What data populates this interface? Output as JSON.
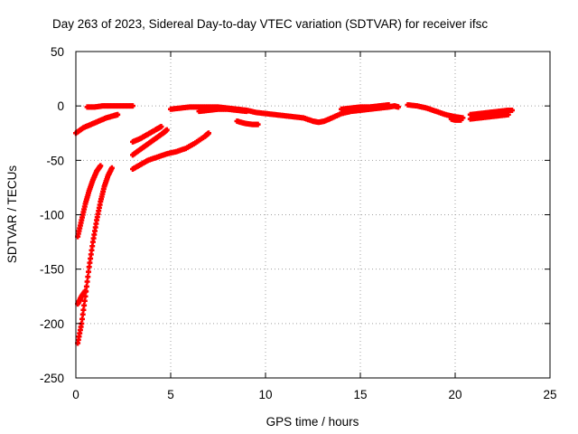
{
  "chart_data": {
    "type": "scatter",
    "title": "Day 263 of 2023, Sidereal Day-to-day VTEC variation (SDTVAR) for receiver ifsc",
    "xlabel": "GPS time / hours",
    "ylabel": "SDTVAR / TECUs",
    "xlim": [
      0,
      25
    ],
    "ylim": [
      -250,
      50
    ],
    "xticks": [
      "0",
      "5",
      "10",
      "15",
      "20",
      "25"
    ],
    "yticks": [
      "50",
      "0",
      "-50",
      "-100",
      "-150",
      "-200",
      "-250"
    ],
    "grid": true,
    "legend": "none",
    "marker_color": "#ff0000",
    "series": [
      {
        "points": [
          [
            0.0,
            -25
          ],
          [
            0.4,
            -20
          ],
          [
            0.8,
            -17
          ],
          [
            1.2,
            -14
          ],
          [
            1.6,
            -11
          ],
          [
            2.0,
            -9
          ],
          [
            2.2,
            -8
          ]
        ]
      },
      {
        "points": [
          [
            0.6,
            -1
          ],
          [
            1.0,
            -1
          ],
          [
            1.4,
            0
          ],
          [
            1.8,
            0
          ],
          [
            2.2,
            0
          ],
          [
            2.6,
            0
          ],
          [
            3.0,
            0
          ]
        ]
      },
      {
        "points": [
          [
            0.1,
            -120
          ],
          [
            0.3,
            -105
          ],
          [
            0.5,
            -90
          ],
          [
            0.7,
            -78
          ],
          [
            0.9,
            -68
          ],
          [
            1.1,
            -60
          ],
          [
            1.3,
            -55
          ]
        ]
      },
      {
        "points": [
          [
            0.1,
            -182
          ],
          [
            0.3,
            -175
          ],
          [
            0.5,
            -170
          ]
        ]
      },
      {
        "points": [
          [
            0.1,
            -218
          ],
          [
            0.3,
            -200
          ],
          [
            0.5,
            -175
          ],
          [
            0.7,
            -148
          ],
          [
            0.9,
            -125
          ],
          [
            1.1,
            -105
          ],
          [
            1.3,
            -88
          ],
          [
            1.5,
            -74
          ],
          [
            1.7,
            -64
          ],
          [
            1.9,
            -57
          ]
        ]
      },
      {
        "points": [
          [
            3.0,
            -33
          ],
          [
            3.4,
            -30
          ],
          [
            3.8,
            -26
          ],
          [
            4.2,
            -22
          ],
          [
            4.5,
            -19
          ]
        ]
      },
      {
        "points": [
          [
            3.0,
            -45
          ],
          [
            3.4,
            -40
          ],
          [
            3.8,
            -35
          ],
          [
            4.2,
            -30
          ],
          [
            4.6,
            -25
          ],
          [
            4.8,
            -22
          ]
        ]
      },
      {
        "points": [
          [
            3.0,
            -58
          ],
          [
            3.4,
            -54
          ],
          [
            3.8,
            -50
          ],
          [
            4.3,
            -47
          ],
          [
            4.8,
            -44
          ],
          [
            5.3,
            -42
          ],
          [
            5.8,
            -39
          ],
          [
            6.3,
            -34
          ],
          [
            6.8,
            -28
          ],
          [
            7.0,
            -25
          ]
        ]
      },
      {
        "points": [
          [
            5.0,
            -3
          ],
          [
            5.5,
            -2
          ],
          [
            6.0,
            -1
          ],
          [
            6.5,
            -1
          ],
          [
            7.0,
            -1
          ],
          [
            7.5,
            -1
          ],
          [
            8.0,
            -2
          ],
          [
            8.5,
            -3
          ],
          [
            9.0,
            -4
          ],
          [
            9.5,
            -6
          ],
          [
            10.0,
            -7
          ],
          [
            10.5,
            -8
          ],
          [
            11.0,
            -9
          ],
          [
            11.5,
            -10
          ],
          [
            12.0,
            -11
          ],
          [
            12.5,
            -14
          ],
          [
            12.8,
            -15
          ],
          [
            13.1,
            -14
          ],
          [
            13.5,
            -11
          ],
          [
            14.0,
            -7
          ],
          [
            14.5,
            -5
          ],
          [
            15.0,
            -4
          ],
          [
            15.5,
            -3
          ],
          [
            16.0,
            -2
          ],
          [
            16.5,
            -1
          ],
          [
            16.8,
            0
          ],
          [
            17.0,
            -1
          ]
        ]
      },
      {
        "points": [
          [
            14.0,
            -3
          ],
          [
            14.5,
            -2
          ],
          [
            15.0,
            -1
          ],
          [
            15.5,
            -1
          ],
          [
            16.0,
            0
          ],
          [
            16.5,
            1
          ]
        ]
      },
      {
        "points": [
          [
            6.5,
            -5
          ],
          [
            7.0,
            -4
          ],
          [
            7.5,
            -3
          ],
          [
            8.0,
            -3
          ],
          [
            8.5,
            -4
          ],
          [
            9.0,
            -5
          ]
        ]
      },
      {
        "points": [
          [
            8.5,
            -14
          ],
          [
            8.9,
            -16
          ],
          [
            9.3,
            -17
          ],
          [
            9.6,
            -17
          ]
        ]
      },
      {
        "points": [
          [
            17.5,
            1
          ],
          [
            18.0,
            0
          ],
          [
            18.5,
            -2
          ],
          [
            19.0,
            -5
          ],
          [
            19.5,
            -8
          ],
          [
            20.0,
            -10
          ],
          [
            20.4,
            -11
          ]
        ]
      },
      {
        "points": [
          [
            19.8,
            -12
          ],
          [
            20.0,
            -13
          ],
          [
            20.3,
            -13
          ]
        ]
      },
      {
        "points": [
          [
            20.8,
            -8
          ],
          [
            21.3,
            -7
          ],
          [
            21.8,
            -6
          ],
          [
            22.3,
            -5
          ],
          [
            22.8,
            -4
          ],
          [
            23.0,
            -4
          ]
        ]
      },
      {
        "points": [
          [
            20.8,
            -12
          ],
          [
            21.3,
            -11
          ],
          [
            21.8,
            -10
          ],
          [
            22.3,
            -9
          ],
          [
            22.8,
            -8
          ]
        ]
      }
    ]
  }
}
